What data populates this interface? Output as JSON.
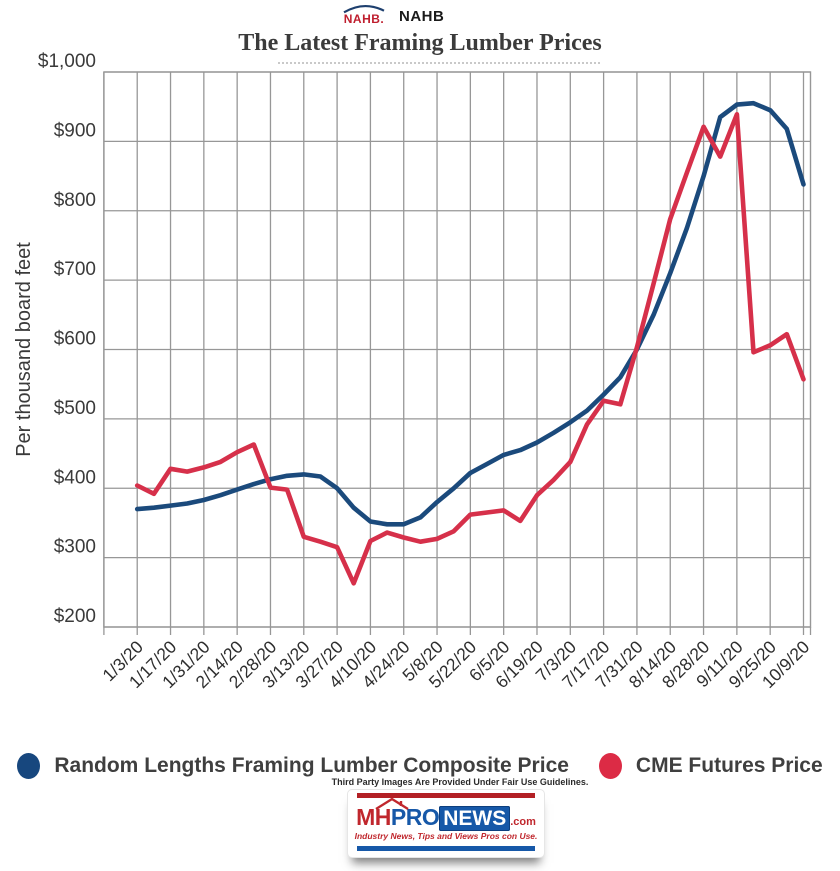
{
  "header": {
    "nahb_logo_word": "NAHB.",
    "nahb_label": "NAHB",
    "title": "The Latest Framing Lumber Prices"
  },
  "chart_data": {
    "type": "line",
    "title": "The Latest Framing Lumber Prices",
    "xlabel": "",
    "ylabel": "Per thousand board feet",
    "ylim": [
      200,
      1000
    ],
    "ytick_step": 100,
    "ytick_labels": [
      "$200",
      "$300",
      "$400",
      "$500",
      "$600",
      "$700",
      "$800",
      "$900",
      "$1,000"
    ],
    "grid": true,
    "legend_position": "bottom",
    "x_tick_labels": [
      "1/3/20",
      "1/17/20",
      "1/31/20",
      "2/14/20",
      "2/28/20",
      "3/13/20",
      "3/27/20",
      "4/10/20",
      "4/24/20",
      "5/8/20",
      "5/22/20",
      "6/5/20",
      "6/19/20",
      "7/3/20",
      "7/17/20",
      "7/31/20",
      "8/14/20",
      "8/28/20",
      "9/11/20",
      "9/25/20",
      "10/9/20"
    ],
    "x_weekly_dates": [
      "1/3/20",
      "1/10/20",
      "1/17/20",
      "1/24/20",
      "1/31/20",
      "2/7/20",
      "2/14/20",
      "2/21/20",
      "2/28/20",
      "3/6/20",
      "3/13/20",
      "3/20/20",
      "3/27/20",
      "4/3/20",
      "4/10/20",
      "4/17/20",
      "4/24/20",
      "5/1/20",
      "5/8/20",
      "5/15/20",
      "5/22/20",
      "5/29/20",
      "6/5/20",
      "6/12/20",
      "6/19/20",
      "6/26/20",
      "7/3/20",
      "7/10/20",
      "7/17/20",
      "7/24/20",
      "7/31/20",
      "8/7/20",
      "8/14/20",
      "8/21/20",
      "8/28/20",
      "9/4/20",
      "9/11/20",
      "9/18/20",
      "9/25/20",
      "10/2/20",
      "10/9/20"
    ],
    "values_note": "USD per thousand board feet, approximate values read from chart",
    "series": [
      {
        "name": "Random Lengths Framing Lumber Composite Price",
        "color": "#1b4a7c",
        "values": [
          370,
          372,
          375,
          378,
          383,
          390,
          398,
          406,
          413,
          418,
          420,
          417,
          400,
          372,
          352,
          348,
          348,
          358,
          380,
          400,
          422,
          435,
          448,
          455,
          466,
          480,
          495,
          512,
          535,
          560,
          600,
          650,
          710,
          775,
          850,
          935,
          953,
          955,
          945,
          918,
          838
        ]
      },
      {
        "name": "CME Futures Price",
        "color": "#d6304a",
        "values": [
          404,
          392,
          428,
          424,
          430,
          438,
          452,
          463,
          401,
          398,
          330,
          323,
          315,
          263,
          324,
          336,
          329,
          323,
          327,
          338,
          362,
          365,
          368,
          353,
          390,
          412,
          438,
          492,
          526,
          521,
          603,
          695,
          788,
          855,
          921,
          878,
          939,
          596,
          606,
          622,
          557
        ]
      }
    ]
  },
  "legend": {
    "items": [
      {
        "label": "Random Lengths Framing Lumber Composite Price",
        "color": "#17477e"
      },
      {
        "label": "CME Futures Price",
        "color": "#dc2b45"
      }
    ]
  },
  "footer": {
    "fair_use_text": "Third Party Images Are Provided Under Fair Use Guidelines.",
    "logo": {
      "mh": "MH",
      "pro": "PRO",
      "news": "NEWS",
      "dotcom": ".com",
      "tagline": "Industry News, Tips and Views Pros con Use."
    }
  },
  "colors": {
    "grid": "#979797",
    "axis_text": "#3a3a3a",
    "title_text": "#3b3b3b",
    "nahb_red": "#bf1e2e",
    "nahb_arc_blue": "#1e3f6e"
  }
}
